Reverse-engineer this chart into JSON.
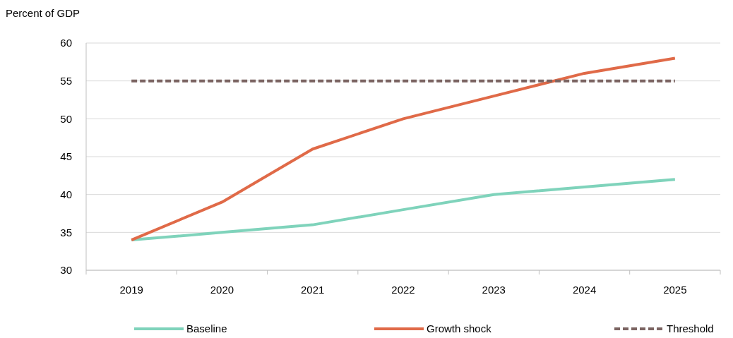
{
  "chart_data": {
    "type": "line",
    "ylabel": "Percent of GDP",
    "categories": [
      "2019",
      "2020",
      "2021",
      "2022",
      "2023",
      "2024",
      "2025"
    ],
    "series": [
      {
        "name": "Baseline",
        "color": "#7fd3bb",
        "values": [
          34,
          35,
          36,
          38,
          40,
          41,
          42
        ]
      },
      {
        "name": "Growth shock",
        "color": "#e06a48",
        "values": [
          34,
          39,
          46,
          50,
          53,
          56,
          58
        ]
      },
      {
        "name": "Threshold",
        "color": "#7b6462",
        "line_style": "dashed",
        "values": [
          55,
          55,
          55,
          55,
          55,
          55,
          55
        ]
      }
    ],
    "ylim": [
      30,
      60
    ],
    "yticks": [
      30,
      35,
      40,
      45,
      50,
      55,
      60
    ],
    "grid": "y",
    "legend": "bottom",
    "marker": "none"
  }
}
